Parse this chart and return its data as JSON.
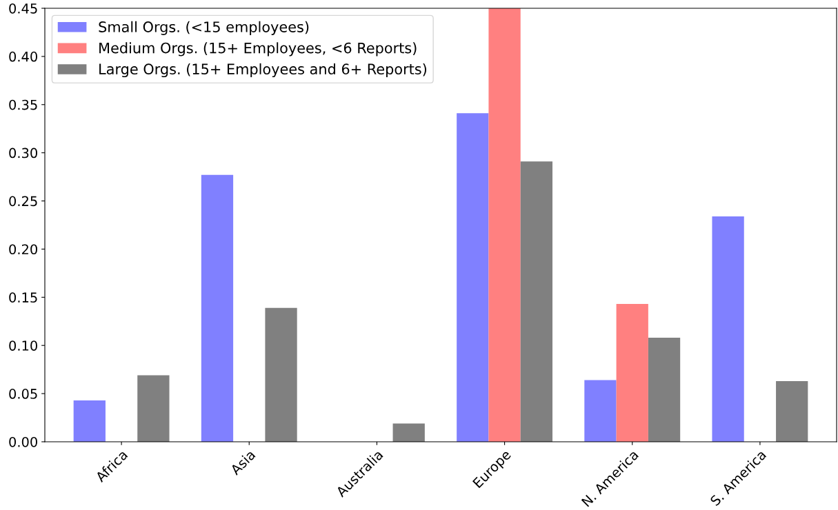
{
  "chart_data": {
    "type": "bar",
    "categories": [
      "Africa",
      "Asia",
      "Australia",
      "Europe",
      "N. America",
      "S. America"
    ],
    "series": [
      {
        "name": "Small Orgs. (<15 employees)",
        "color": "#8080ff",
        "values": [
          0.043,
          0.277,
          0,
          0.341,
          0.064,
          0.234
        ]
      },
      {
        "name": "Medium Orgs. (15+ Employees, <6 Reports)",
        "color": "#ff8080",
        "values": [
          0,
          0,
          0,
          0.45,
          0.143,
          0
        ]
      },
      {
        "name": "Large Orgs. (15+ Employees and 6+ Reports)",
        "color": "#808080",
        "values": [
          0.069,
          0.139,
          0.019,
          0.291,
          0.108,
          0.063
        ]
      }
    ],
    "ylim": [
      0,
      0.45
    ],
    "yticks": [
      {
        "value": 0,
        "label": "0.00"
      },
      {
        "value": 0.05,
        "label": "0.05"
      },
      {
        "value": 0.1,
        "label": "0.10"
      },
      {
        "value": 0.15,
        "label": "0.15"
      },
      {
        "value": 0.2,
        "label": "0.20"
      },
      {
        "value": 0.25,
        "label": "0.25"
      },
      {
        "value": 0.3,
        "label": "0.30"
      },
      {
        "value": 0.35,
        "label": "0.35"
      },
      {
        "value": 0.4,
        "label": "0.40"
      },
      {
        "value": 0.45,
        "label": "0.45"
      }
    ],
    "grid": false,
    "legend": "top left"
  }
}
